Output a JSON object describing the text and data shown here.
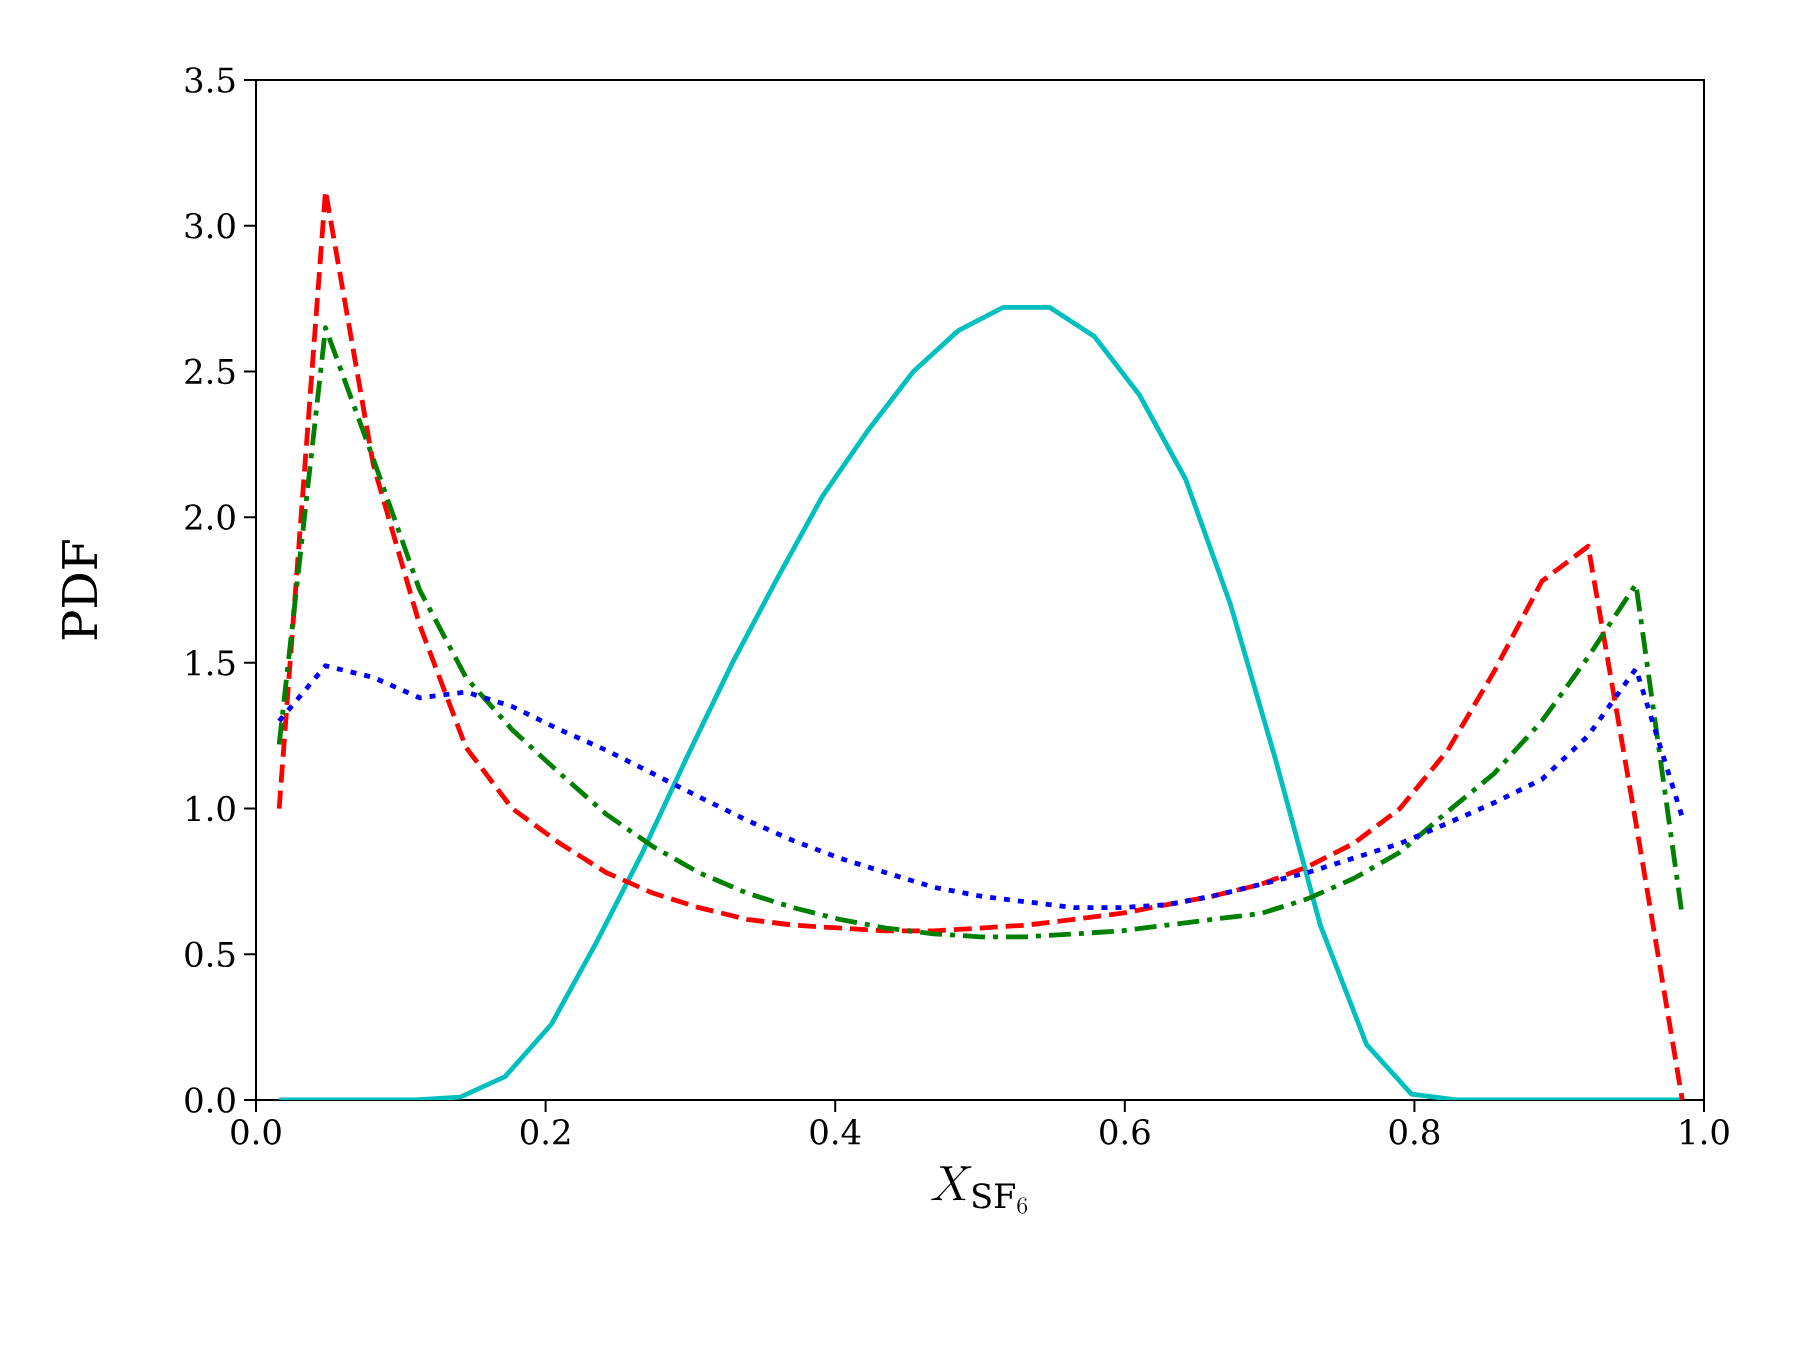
{
  "chart_data": {
    "type": "line",
    "xlabel": "X_{\\mathrm{SF}_6}",
    "ylabel": "PDF",
    "x": [
      0.016,
      0.048,
      0.081,
      0.113,
      0.145,
      0.177,
      0.21,
      0.242,
      0.274,
      0.306,
      0.339,
      0.371,
      0.403,
      0.435,
      0.468,
      0.5,
      0.532,
      0.565,
      0.597,
      0.629,
      0.661,
      0.694,
      0.726,
      0.758,
      0.79,
      0.823,
      0.855,
      0.888,
      0.92,
      0.953,
      0.985
    ],
    "series": [
      {
        "color": "#00bfbf",
        "line_style": "solid",
        "x": [
          0.016,
          0.047,
          0.078,
          0.11,
          0.141,
          0.172,
          0.204,
          0.235,
          0.266,
          0.297,
          0.329,
          0.36,
          0.391,
          0.423,
          0.454,
          0.485,
          0.516,
          0.548,
          0.579,
          0.61,
          0.642,
          0.673,
          0.704,
          0.735,
          0.767,
          0.798,
          0.829,
          0.86,
          0.892,
          0.923,
          0.954,
          0.985
        ],
        "values": [
          0,
          0,
          0,
          0,
          0.01,
          0.08,
          0.26,
          0.54,
          0.84,
          1.17,
          1.5,
          1.79,
          2.07,
          2.3,
          2.5,
          2.64,
          2.72,
          2.72,
          2.62,
          2.42,
          2.13,
          1.7,
          1.17,
          0.6,
          0.19,
          0.02,
          0,
          0,
          0,
          0,
          0,
          0
        ]
      },
      {
        "color": "#ff0000",
        "line_style": "dashed",
        "values": [
          1.0,
          3.12,
          2.18,
          1.63,
          1.21,
          1.0,
          0.88,
          0.78,
          0.71,
          0.66,
          0.62,
          0.6,
          0.59,
          0.58,
          0.58,
          0.59,
          0.6,
          0.62,
          0.64,
          0.67,
          0.7,
          0.74,
          0.8,
          0.88,
          1.0,
          1.2,
          1.47,
          1.78,
          1.9,
          0.95,
          0
        ]
      },
      {
        "color": "#008000",
        "line_style": "dashdot",
        "values": [
          1.22,
          2.65,
          2.2,
          1.75,
          1.45,
          1.27,
          1.12,
          0.98,
          0.87,
          0.78,
          0.71,
          0.66,
          0.62,
          0.59,
          0.57,
          0.56,
          0.56,
          0.57,
          0.58,
          0.6,
          0.62,
          0.64,
          0.69,
          0.76,
          0.85,
          0.99,
          1.12,
          1.3,
          1.52,
          1.77,
          0.63
        ]
      },
      {
        "color": "#0000ff",
        "line_style": "dotted",
        "values": [
          1.3,
          1.49,
          1.45,
          1.38,
          1.4,
          1.35,
          1.27,
          1.2,
          1.12,
          1.04,
          0.96,
          0.89,
          0.83,
          0.78,
          0.73,
          0.7,
          0.68,
          0.66,
          0.66,
          0.67,
          0.7,
          0.74,
          0.78,
          0.83,
          0.88,
          0.95,
          1.02,
          1.1,
          1.25,
          1.48,
          0.97
        ]
      }
    ],
    "xlim": [
      0,
      1
    ],
    "ylim": [
      0,
      3.5
    ],
    "xticks": [
      {
        "value": 0,
        "label": "0.0"
      },
      0.2,
      0.4,
      0.6,
      0.8,
      {
        "value": 1,
        "label": "1.0"
      }
    ],
    "yticks": [
      {
        "value": 0,
        "label": "0.0"
      },
      0.5,
      {
        "value": 1,
        "label": "1.0"
      },
      1.5,
      {
        "value": 2,
        "label": "2.0"
      },
      2.5,
      {
        "value": 3,
        "label": "3.0"
      },
      3.5
    ],
    "grid": false
  }
}
